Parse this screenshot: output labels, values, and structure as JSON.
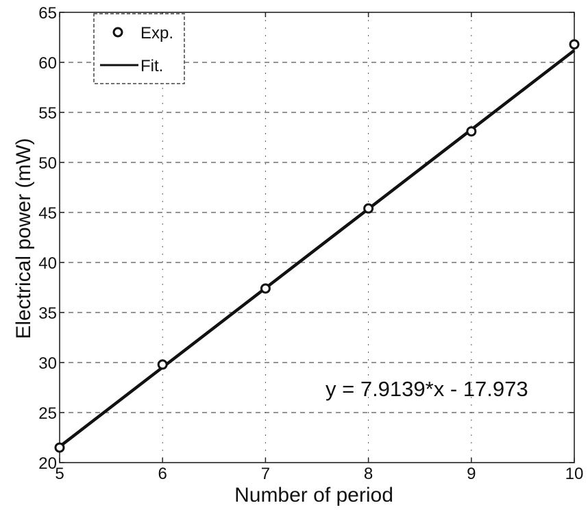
{
  "chart_data": {
    "type": "scatter",
    "title": "",
    "xlabel": "Number of period",
    "ylabel": "Electrical power (mW)",
    "xlim": [
      5,
      10
    ],
    "ylim": [
      20,
      65
    ],
    "xticks": [
      5,
      6,
      7,
      8,
      9,
      10
    ],
    "yticks": [
      20,
      25,
      30,
      35,
      40,
      45,
      50,
      55,
      60,
      65
    ],
    "grid": true,
    "legend_position": "top-left",
    "series": [
      {
        "name": "Exp.",
        "kind": "markers",
        "marker": "circle",
        "x": [
          5,
          6,
          7,
          8,
          9,
          10
        ],
        "y": [
          21.5,
          29.8,
          37.4,
          45.4,
          53.1,
          61.8
        ]
      },
      {
        "name": "Fit.",
        "kind": "line",
        "x": [
          5,
          10
        ],
        "y": [
          21.6,
          61.2
        ]
      }
    ],
    "annotation": "y = 7.9139*x - 17.973",
    "colors": {
      "line": "#111111",
      "marker": "#111111",
      "grid": "#555555"
    }
  }
}
